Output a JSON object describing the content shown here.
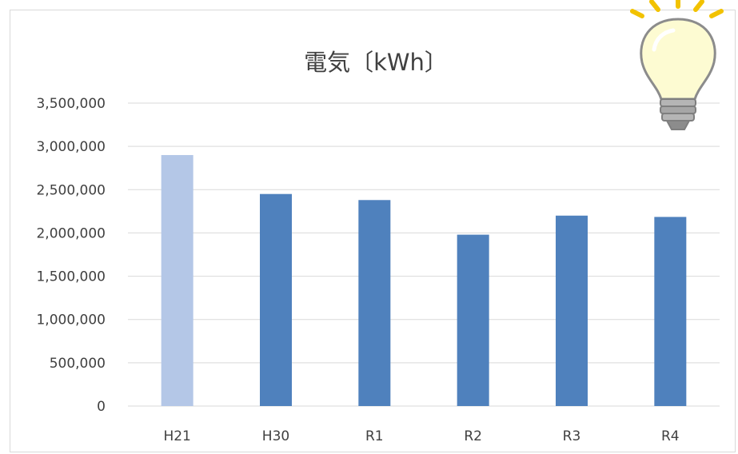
{
  "chart_data": {
    "type": "bar",
    "title": "電気〔kWh〕",
    "categories": [
      "H21",
      "H30",
      "R1",
      "R2",
      "R3",
      "R4"
    ],
    "values": [
      2900000,
      2450000,
      2380000,
      1980000,
      2200000,
      2185000
    ],
    "ylim": [
      0,
      3500000
    ],
    "yticks": [
      "0",
      "500,000",
      "1,000,000",
      "1,500,000",
      "2,000,000",
      "2,500,000",
      "3,000,000",
      "3,500,000"
    ],
    "ytick_values": [
      0,
      500000,
      1000000,
      1500000,
      2000000,
      2500000,
      3000000,
      3500000
    ],
    "grid": true,
    "legend": "none",
    "colors": {
      "highlight_bar": "#b4c7e7",
      "bar": "#4f81bd",
      "grid": "#d9d9d9",
      "text": "#404040"
    }
  },
  "decoration": {
    "icon": "light-bulb-icon"
  }
}
